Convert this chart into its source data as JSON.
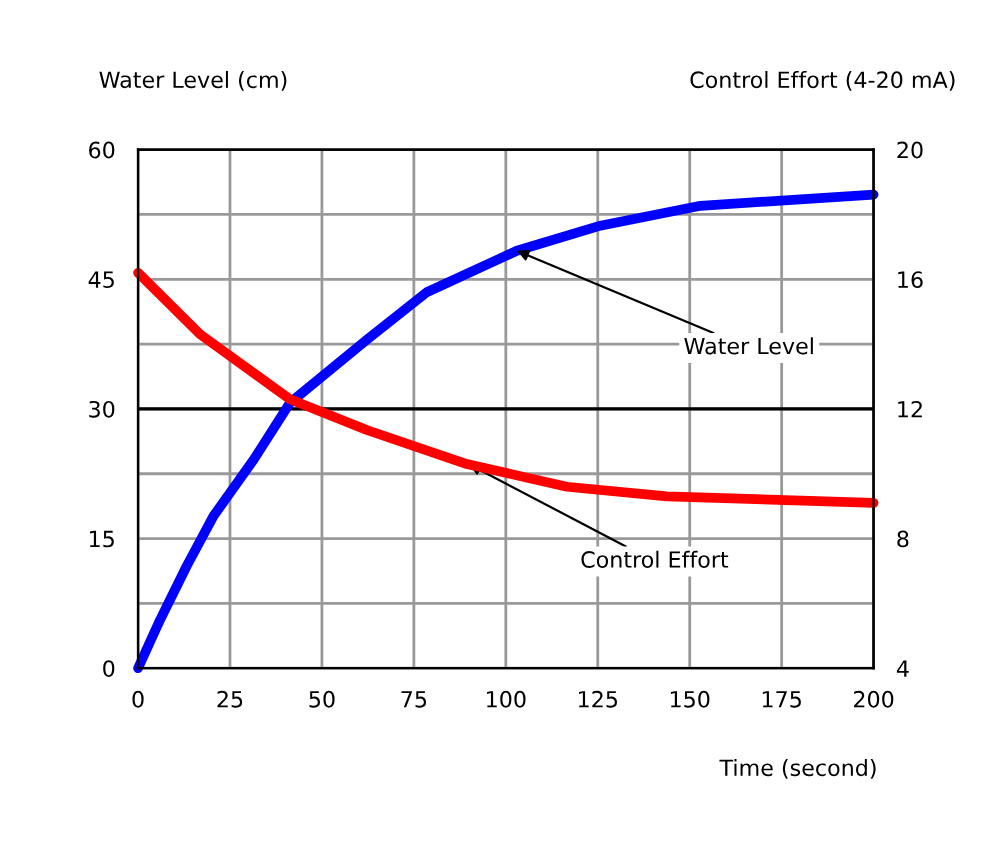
{
  "chart_data": {
    "type": "line",
    "xlabel": "Time (second)",
    "ylabel": "Water Level (cm)",
    "y2label": "Control Effort (4-20 mA)",
    "xlim": [
      0,
      200
    ],
    "xticks": [
      0,
      25,
      50,
      75,
      100,
      125,
      150,
      175,
      200
    ],
    "ylim": [
      0,
      60
    ],
    "yticks": [
      0,
      {
        "value": 7.5,
        "label": null
      },
      15,
      {
        "value": 22.5,
        "label": null
      },
      30,
      {
        "value": 37.5,
        "label": null
      },
      45,
      {
        "value": 52.5,
        "label": null
      },
      60
    ],
    "y2lim": [
      4,
      20
    ],
    "y2ticks": [
      4,
      8,
      12,
      16,
      20
    ],
    "grid": true,
    "line_style": "solid",
    "marker": "none",
    "ref_lines": [
      {
        "axis": "y",
        "value": 30,
        "color": "#000000"
      }
    ],
    "series": [
      {
        "color": "#0000ff",
        "x": [
          0,
          6,
          13.2,
          20.5,
          31.4,
          41.3,
          62.2,
          78.5,
          103,
          125.7,
          152.9,
          200
        ],
        "values": [
          0,
          5.6,
          11.8,
          17.6,
          24.1,
          30.7,
          38,
          43.5,
          48.3,
          51.2,
          53.5,
          54.8
        ]
      },
      {
        "color": "#ff0000",
        "axis": "y2",
        "x": [
          0,
          16.9,
          41.3,
          62.2,
          89.4,
          116.6,
          143.8,
          200
        ],
        "values": [
          16.2,
          14.3,
          12.3,
          11.35,
          10.3,
          9.6,
          9.3,
          9.1
        ]
      }
    ],
    "annotations": [
      {
        "text": "Water Level",
        "x": 103,
        "y": 48.3
      },
      {
        "text": "Control Effort",
        "x": 90,
        "y": 23.6
      }
    ]
  }
}
